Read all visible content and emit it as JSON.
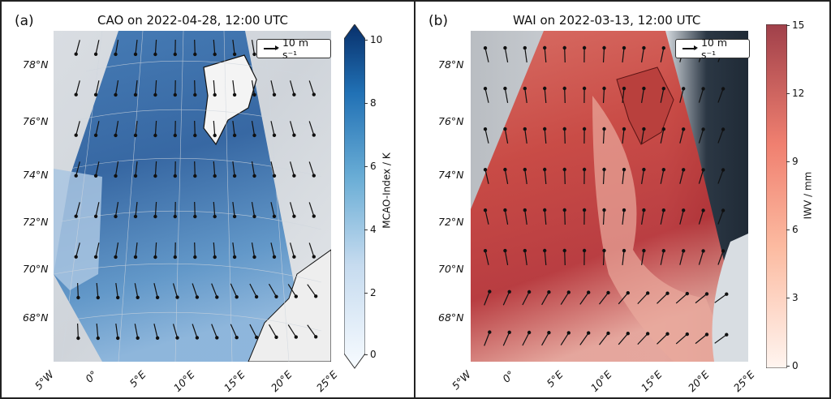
{
  "panels": [
    {
      "letter": "(a)",
      "title": "CAO on 2022-04-28, 12:00 UTC",
      "legend": "10 m s⁻¹",
      "lat_labels": [
        "78°N",
        "76°N",
        "74°N",
        "72°N",
        "70°N",
        "68°N"
      ],
      "lon_labels": [
        "5°W",
        "0°",
        "5°E",
        "10°E",
        "15°E",
        "20°E",
        "25°E"
      ],
      "colorbar": {
        "label": "MCAO-Index / K",
        "ticks": [
          "10",
          "8",
          "6",
          "4",
          "2",
          "0"
        ],
        "min": 0,
        "max": 10,
        "extend": "both",
        "colors": [
          "#f7fbff",
          "#c6dbef",
          "#6baed6",
          "#2171b5",
          "#08306b"
        ]
      }
    },
    {
      "letter": "(b)",
      "title": "WAI on 2022-03-13, 12:00 UTC",
      "legend": "10 m s⁻¹",
      "lat_labels": [
        "78°N",
        "76°N",
        "74°N",
        "72°N",
        "70°N",
        "68°N"
      ],
      "lon_labels": [
        "5°W",
        "0°",
        "5°E",
        "10°E",
        "15°E",
        "20°E",
        "25°E"
      ],
      "colorbar": {
        "label": "IWV / mm",
        "ticks": [
          "15",
          "12",
          "9",
          "6",
          "3",
          "0"
        ],
        "min": 0,
        "max": 15,
        "extend": "neither",
        "colors": [
          "#fff5f0",
          "#fcbba1",
          "#fb6a4a",
          "#cb181d",
          "#67000d"
        ]
      }
    }
  ]
}
